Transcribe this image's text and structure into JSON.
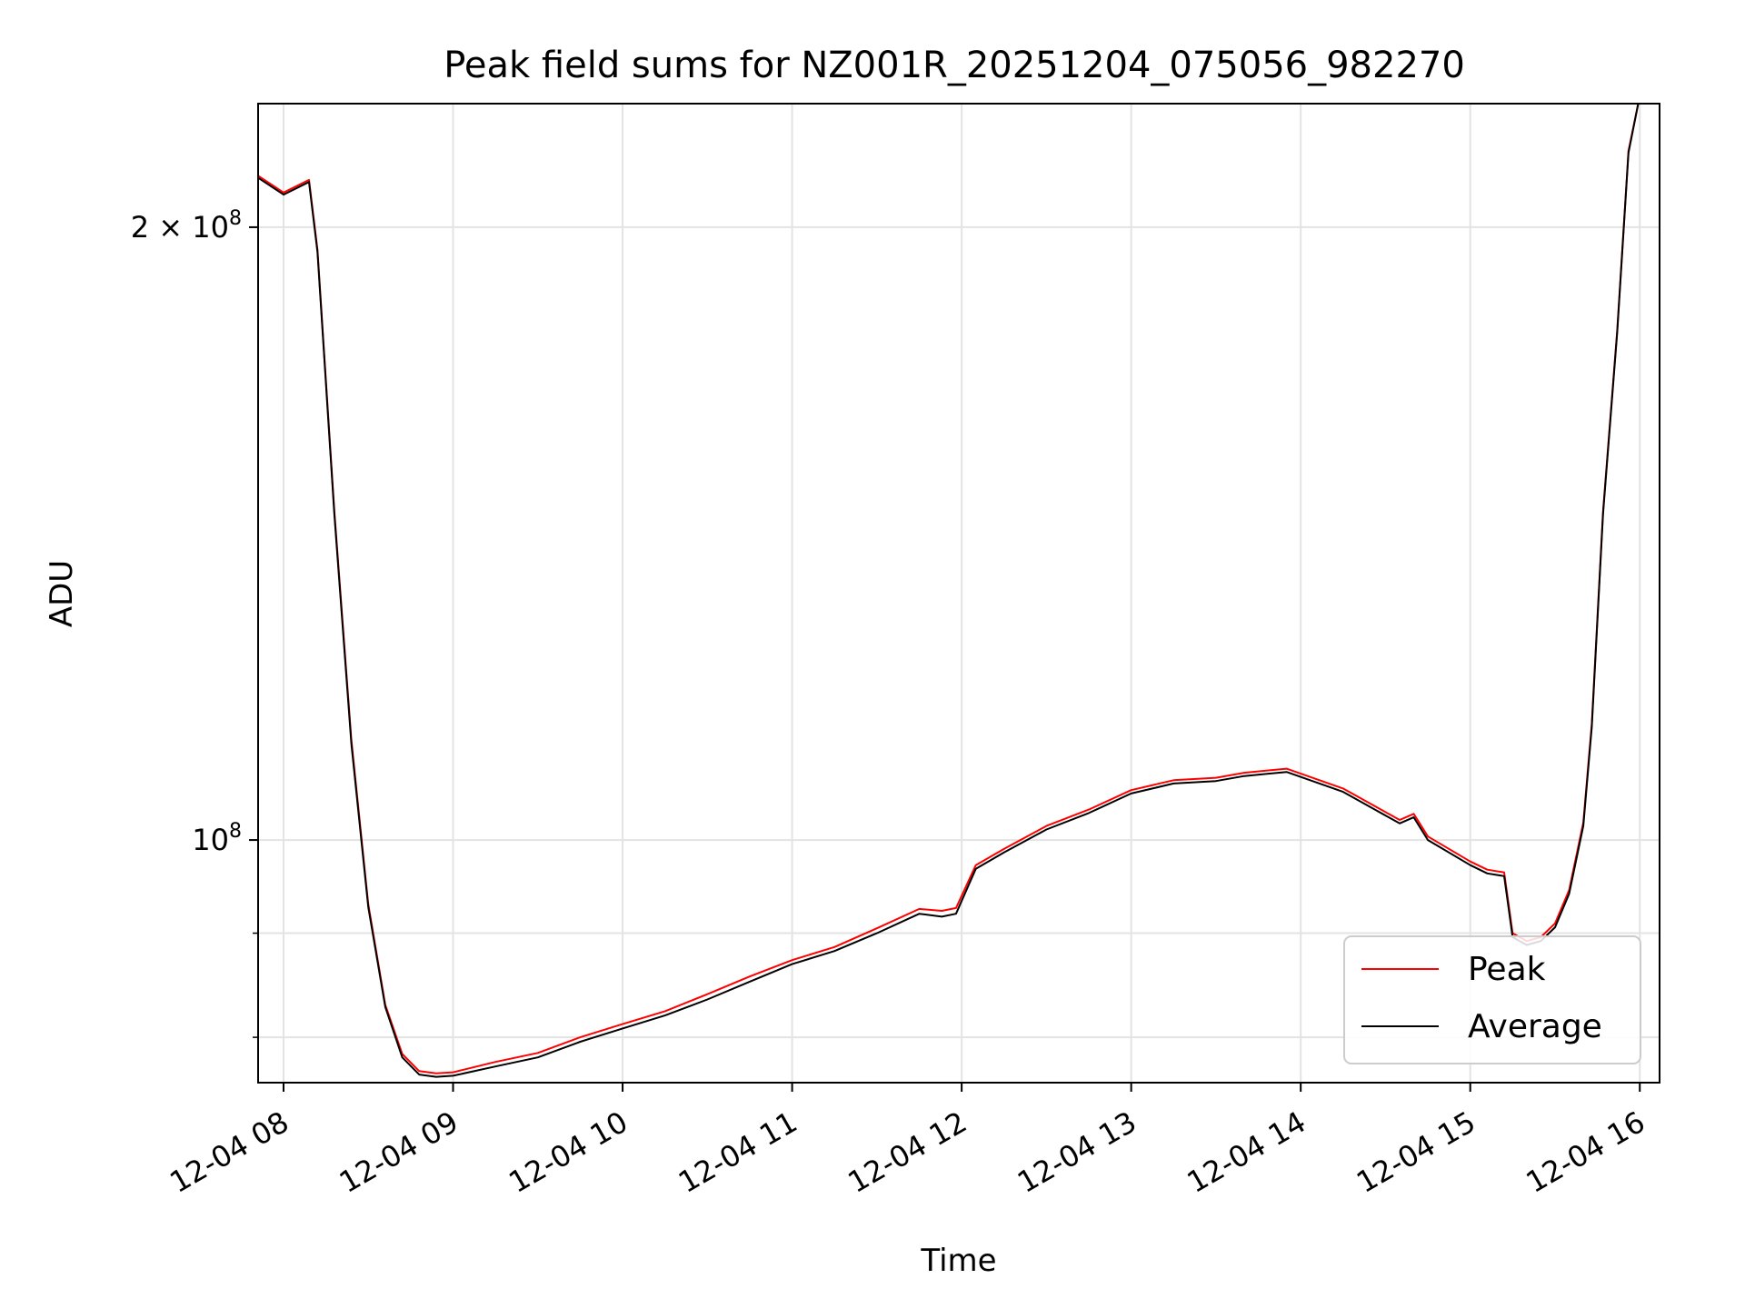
{
  "chart_data": {
    "type": "line",
    "title": "Peak field sums for NZ001R_20251204_075056_982270",
    "xlabel": "Time",
    "ylabel": "ADU",
    "yscale": "log",
    "xlim": [
      "12-04 07:51",
      "12-04 16:07"
    ],
    "ylim": [
      76000000,
      230000000
    ],
    "x_ticks": [
      "12-04 08",
      "12-04 09",
      "12-04 10",
      "12-04 11",
      "12-04 12",
      "12-04 13",
      "12-04 14",
      "12-04 15",
      "12-04 16"
    ],
    "y_ticks": [
      {
        "value": 200000000,
        "base": "2 × 10",
        "exp": "8"
      },
      {
        "value": 100000000,
        "base": "10",
        "exp": "8"
      }
    ],
    "y_minor_ticks": [
      90000000,
      80000000
    ],
    "grid": true,
    "legend_position": "lower right",
    "series": [
      {
        "name": "Peak",
        "color": "#ff0000",
        "x": [
          "12-04 07:51",
          "12-04 08:00",
          "12-04 08:09",
          "12-04 08:12",
          "12-04 08:18",
          "12-04 08:24",
          "12-04 08:30",
          "12-04 08:36",
          "12-04 08:42",
          "12-04 08:48",
          "12-04 08:54",
          "12-04 09:00",
          "12-04 09:15",
          "12-04 09:30",
          "12-04 09:45",
          "12-04 10:00",
          "12-04 10:15",
          "12-04 10:30",
          "12-04 10:45",
          "12-04 11:00",
          "12-04 11:15",
          "12-04 11:30",
          "12-04 11:45",
          "12-04 11:53",
          "12-04 11:58",
          "12-04 12:05",
          "12-04 12:15",
          "12-04 12:30",
          "12-04 12:45",
          "12-04 13:00",
          "12-04 13:15",
          "12-04 13:30",
          "12-04 13:40",
          "12-04 13:55",
          "12-04 14:15",
          "12-04 14:35",
          "12-04 14:40",
          "12-04 14:45",
          "12-04 15:00",
          "12-04 15:06",
          "12-04 15:12",
          "12-04 15:15",
          "12-04 15:20",
          "12-04 15:25",
          "12-04 15:30",
          "12-04 15:35",
          "12-04 15:40",
          "12-04 15:43",
          "12-04 15:47",
          "12-04 15:52",
          "12-04 15:56",
          "12-04 16:00",
          "12-04 16:07"
        ],
        "y": [
          212000000,
          208000000,
          211000000,
          195000000,
          145000000,
          112000000,
          93000000,
          83000000,
          78500000,
          77000000,
          76800000,
          76900000,
          77800000,
          78600000,
          80000000,
          81200000,
          82400000,
          84000000,
          85700000,
          87300000,
          88600000,
          90500000,
          92500000,
          92300000,
          92600000,
          97200000,
          99000000,
          101600000,
          103500000,
          105800000,
          107000000,
          107300000,
          107900000,
          108400000,
          106000000,
          102300000,
          103000000,
          100400000,
          97600000,
          96700000,
          96400000,
          90000000,
          89200000,
          89600000,
          91000000,
          94500000,
          102000000,
          114000000,
          145000000,
          178000000,
          218000000,
          232000000,
          232000000
        ]
      },
      {
        "name": "Average",
        "color": "#000000",
        "x": [
          "12-04 07:51",
          "12-04 08:00",
          "12-04 08:09",
          "12-04 08:12",
          "12-04 08:18",
          "12-04 08:24",
          "12-04 08:30",
          "12-04 08:36",
          "12-04 08:42",
          "12-04 08:48",
          "12-04 08:54",
          "12-04 09:00",
          "12-04 09:15",
          "12-04 09:30",
          "12-04 09:45",
          "12-04 10:00",
          "12-04 10:15",
          "12-04 10:30",
          "12-04 10:45",
          "12-04 11:00",
          "12-04 11:15",
          "12-04 11:30",
          "12-04 11:45",
          "12-04 11:53",
          "12-04 11:58",
          "12-04 12:05",
          "12-04 12:15",
          "12-04 12:30",
          "12-04 12:45",
          "12-04 13:00",
          "12-04 13:15",
          "12-04 13:30",
          "12-04 13:40",
          "12-04 13:55",
          "12-04 14:15",
          "12-04 14:35",
          "12-04 14:40",
          "12-04 14:45",
          "12-04 15:00",
          "12-04 15:06",
          "12-04 15:12",
          "12-04 15:15",
          "12-04 15:20",
          "12-04 15:25",
          "12-04 15:30",
          "12-04 15:35",
          "12-04 15:40",
          "12-04 15:43",
          "12-04 15:47",
          "12-04 15:52",
          "12-04 15:56",
          "12-04 16:00",
          "12-04 16:07"
        ],
        "y": [
          211500000,
          207500000,
          210500000,
          194500000,
          144500000,
          111500000,
          92700000,
          82800000,
          78200000,
          76700000,
          76500000,
          76600000,
          77400000,
          78200000,
          79600000,
          80800000,
          82000000,
          83500000,
          85200000,
          86900000,
          88200000,
          90000000,
          92000000,
          91700000,
          92000000,
          96800000,
          98600000,
          101200000,
          103100000,
          105400000,
          106600000,
          106900000,
          107500000,
          108000000,
          105600000,
          101900000,
          102600000,
          100000000,
          97200000,
          96300000,
          96000000,
          89600000,
          88800000,
          89200000,
          90600000,
          94100000,
          101600000,
          113600000,
          144600000,
          177600000,
          217600000,
          232000000,
          232000000
        ]
      }
    ]
  }
}
